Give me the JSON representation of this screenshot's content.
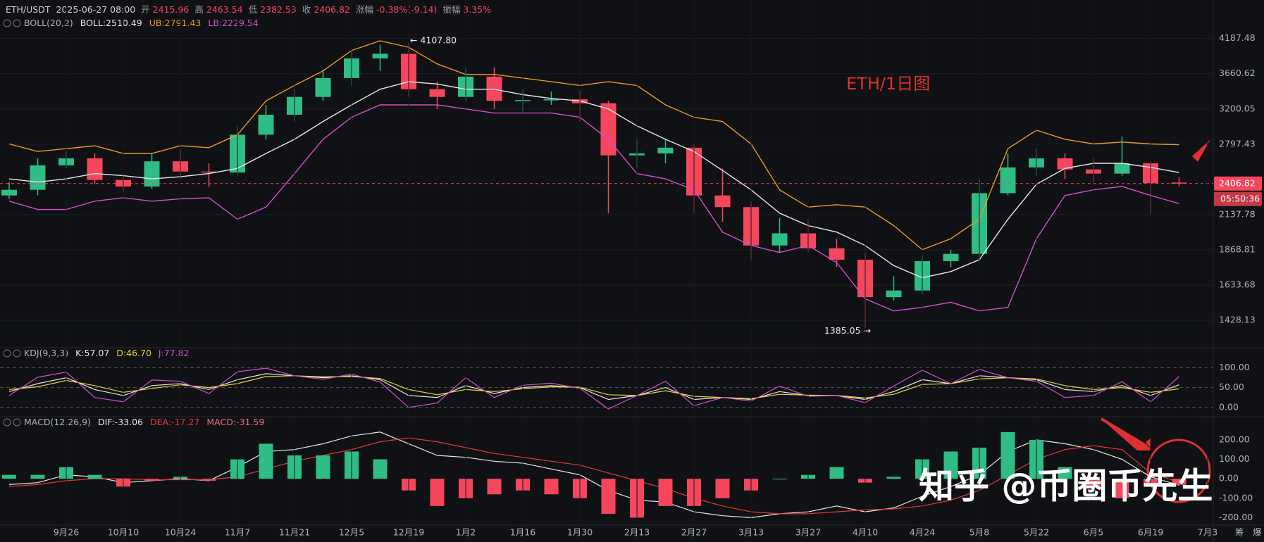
{
  "chart_data": [
    {
      "type": "candlestick",
      "title": "ETH/1日图",
      "header": {
        "symbol": "ETH/USDT",
        "time": "2025-06-27 08:00",
        "fields": [
          {
            "label": "开",
            "value": 2415.96
          },
          {
            "label": "高",
            "value": 2463.54
          },
          {
            "label": "低",
            "value": 2382.53
          },
          {
            "label": "收",
            "value": 2406.82
          },
          {
            "label": "涨幅",
            "value": "-0.38%(-9.14)"
          },
          {
            "label": "振幅",
            "value": "3.35%"
          }
        ]
      },
      "indicator": "BOLL(20,2)",
      "open": [
        2300,
        2350,
        2580,
        2650,
        2440,
        2380,
        2620,
        2520,
        2510,
        2900,
        3130,
        3350,
        3600,
        3880,
        3950,
        3450,
        3350,
        3620,
        3300,
        3310,
        3320,
        3270,
        2680,
        2700,
        2760,
        2300,
        2200,
        1900,
        1990,
        1880,
        1800,
        1560,
        1600,
        1790,
        1840,
        2320,
        2560,
        2650,
        2540,
        2500,
        2600,
        2415.96,
        null
      ],
      "high": [
        2420,
        2650,
        2720,
        2700,
        2500,
        2700,
        2750,
        2600,
        3000,
        3250,
        3450,
        3720,
        4000,
        4090,
        4107.8,
        3550,
        3750,
        3750,
        3450,
        3420,
        3430,
        3300,
        2850,
        2850,
        2800,
        2550,
        2250,
        2110,
        2100,
        1950,
        1850,
        1690,
        1830,
        1870,
        2450,
        2700,
        2750,
        2700,
        2650,
        2880,
        2620,
        2463.54,
        null
      ],
      "low": [
        2270,
        2300,
        2550,
        2400,
        2330,
        2360,
        2450,
        2380,
        2480,
        2850,
        3050,
        3300,
        3500,
        3700,
        3350,
        3200,
        3300,
        3200,
        3150,
        3250,
        3050,
        2150,
        2550,
        2600,
        2150,
        2080,
        1800,
        1850,
        1850,
        1750,
        1385.05,
        1540,
        1580,
        1750,
        1800,
        2300,
        2480,
        2450,
        2400,
        2480,
        2150,
        2382.53,
        null
      ],
      "close": [
        2350,
        2580,
        2650,
        2440,
        2380,
        2620,
        2520,
        2510,
        2900,
        3130,
        3350,
        3600,
        3880,
        3950,
        3450,
        3350,
        3620,
        3300,
        3310,
        3320,
        3270,
        2680,
        2700,
        2760,
        2300,
        2200,
        1900,
        1990,
        1880,
        1800,
        1560,
        1600,
        1790,
        1840,
        2320,
        2560,
        2650,
        2540,
        2500,
        2600,
        2410,
        2406.82,
        null
      ],
      "up_color": "#2ebd85",
      "down_color": "#f6465d",
      "series": [
        {
          "name": "BOLL:2510.49",
          "color": "#e8e8e8",
          "values": [
            2450,
            2420,
            2450,
            2500,
            2480,
            2450,
            2470,
            2500,
            2550,
            2700,
            2850,
            3050,
            3250,
            3450,
            3550,
            3520,
            3450,
            3450,
            3380,
            3330,
            3300,
            3200,
            3000,
            2850,
            2720,
            2530,
            2350,
            2150,
            2050,
            2000,
            1900,
            1760,
            1680,
            1720,
            1800,
            2100,
            2400,
            2550,
            2600,
            2600,
            2560,
            2510.49,
            null
          ]
        },
        {
          "name": "UB:2791.43",
          "color": "#e89a2c",
          "values": [
            2800,
            2720,
            2750,
            2780,
            2700,
            2700,
            2780,
            2760,
            2900,
            3300,
            3500,
            3700,
            4000,
            4150,
            4050,
            3800,
            3650,
            3650,
            3600,
            3550,
            3500,
            3550,
            3500,
            3250,
            3100,
            3050,
            2800,
            2350,
            2200,
            2220,
            2200,
            2050,
            1870,
            1950,
            2100,
            2750,
            2950,
            2850,
            2800,
            2820,
            2800,
            2791.43,
            null
          ]
        },
        {
          "name": "LB:2229.54",
          "color": "#d24fcf",
          "values": [
            2250,
            2180,
            2180,
            2250,
            2280,
            2250,
            2270,
            2280,
            2100,
            2200,
            2500,
            2850,
            3100,
            3250,
            3250,
            3250,
            3200,
            3150,
            3150,
            3150,
            3100,
            2850,
            2500,
            2450,
            2350,
            2000,
            1900,
            1850,
            1900,
            1780,
            1550,
            1480,
            1500,
            1530,
            1480,
            1500,
            1950,
            2300,
            2350,
            2380,
            2300,
            2229.54,
            null
          ]
        }
      ],
      "log_scale": true,
      "grid": true,
      "ylim": [
        1300,
        4850
      ],
      "yticks": [
        4187.48,
        3660.62,
        3200.05,
        2797.43,
        2137.78,
        1868.81,
        1633.68,
        1428.13
      ],
      "annotations": [
        {
          "index": 14,
          "text": "← 4107.80"
        },
        {
          "index": 30,
          "text": "1385.05 →"
        }
      ],
      "countdown": "05:50:36"
    },
    {
      "type": "line",
      "indicator": "KDJ(9,3,3)",
      "series": [
        {
          "name": "K:57.07",
          "color": "#e8e8e8",
          "values": [
            40,
            60,
            75,
            45,
            30,
            55,
            60,
            45,
            70,
            85,
            80,
            75,
            80,
            70,
            30,
            25,
            55,
            35,
            50,
            55,
            50,
            20,
            30,
            50,
            20,
            25,
            20,
            40,
            30,
            30,
            20,
            40,
            70,
            60,
            80,
            75,
            70,
            45,
            40,
            55,
            30,
            57.07,
            null
          ]
        },
        {
          "name": "D:46.70",
          "color": "#e8d33a",
          "values": [
            45,
            52,
            68,
            55,
            38,
            48,
            57,
            50,
            60,
            78,
            80,
            77,
            78,
            73,
            45,
            32,
            45,
            40,
            47,
            52,
            51,
            32,
            30,
            42,
            28,
            25,
            22,
            33,
            31,
            30,
            24,
            33,
            58,
            60,
            72,
            75,
            72,
            55,
            45,
            50,
            38,
            46.7,
            null
          ]
        },
        {
          "name": "J:77.82",
          "color": "#d24fcf",
          "values": [
            30,
            76,
            89,
            25,
            14,
            69,
            66,
            35,
            90,
            99,
            80,
            71,
            84,
            64,
            0,
            11,
            75,
            25,
            56,
            61,
            48,
            -4,
            30,
            66,
            4,
            25,
            16,
            54,
            28,
            30,
            12,
            54,
            94,
            60,
            96,
            75,
            66,
            25,
            30,
            65,
            14,
            77.82,
            null
          ]
        }
      ],
      "ylim": [
        -20,
        140
      ],
      "yticks": [
        {
          "value": 100,
          "label": "100.00"
        },
        {
          "value": 50,
          "label": "50.00"
        },
        {
          "value": 0,
          "label": "0.00"
        }
      ]
    },
    {
      "type": "macd",
      "indicator": "MACD(12,26,9)",
      "categories": [
        null,
        null,
        "9月26",
        null,
        "10月10",
        null,
        "10月24",
        null,
        "11月7",
        null,
        "11月21",
        null,
        "12月5",
        null,
        "12月19",
        null,
        "1月2",
        null,
        "1月16",
        null,
        "1月30",
        null,
        "2月13",
        null,
        "2月27",
        null,
        "3月13",
        null,
        "3月27",
        null,
        "4月10",
        null,
        "4月24",
        null,
        "5月8",
        null,
        "5月22",
        null,
        "6月5",
        null,
        "6月19",
        null,
        "7月3"
      ],
      "series": [
        {
          "name": "DIF:-33.06",
          "color": "#e8e8e8",
          "values": [
            -30,
            -20,
            20,
            10,
            -20,
            -10,
            0,
            -10,
            60,
            140,
            150,
            180,
            220,
            240,
            180,
            120,
            110,
            90,
            80,
            50,
            20,
            -60,
            -110,
            -120,
            -170,
            -190,
            -200,
            -180,
            -170,
            -140,
            -170,
            -150,
            -90,
            -40,
            20,
            140,
            200,
            180,
            150,
            100,
            10,
            -33.06,
            null
          ]
        },
        {
          "name": "DEA:-17.27",
          "color": "#e23a3a",
          "values": [
            -40,
            -30,
            -10,
            0,
            0,
            -5,
            -5,
            -5,
            10,
            50,
            90,
            120,
            150,
            190,
            210,
            190,
            160,
            130,
            110,
            90,
            70,
            30,
            -10,
            -50,
            -100,
            -140,
            -170,
            -180,
            -180,
            -170,
            -160,
            -155,
            -140,
            -110,
            -60,
            20,
            100,
            150,
            170,
            150,
            30,
            -17.27,
            null
          ]
        },
        {
          "name": "MACD:-31.59",
          "type": "bar",
          "color": "#f06a7a",
          "up_color": "#2ebd85",
          "down_color": "#f6465d",
          "values": [
            20,
            20,
            60,
            20,
            -40,
            -10,
            10,
            -10,
            100,
            180,
            120,
            120,
            140,
            100,
            -60,
            -140,
            -100,
            -80,
            -60,
            -80,
            -100,
            -180,
            -200,
            -140,
            -140,
            -100,
            -60,
            0,
            20,
            60,
            -20,
            10,
            100,
            140,
            160,
            240,
            200,
            60,
            -40,
            -100,
            -40,
            -31.59,
            null
          ]
        }
      ],
      "ylim": [
        -260,
        290
      ],
      "yticks": [
        {
          "value": 200,
          "label": "200.00"
        },
        {
          "value": 100,
          "label": "100.00"
        },
        {
          "value": 0,
          "label": "0.00"
        },
        {
          "value": -100,
          "label": "-100.00"
        },
        {
          "value": -200,
          "label": "-200.00"
        }
      ]
    }
  ],
  "toolbar": [
    "筹",
    "爆"
  ],
  "watermark": "知乎 @币圈币先生"
}
